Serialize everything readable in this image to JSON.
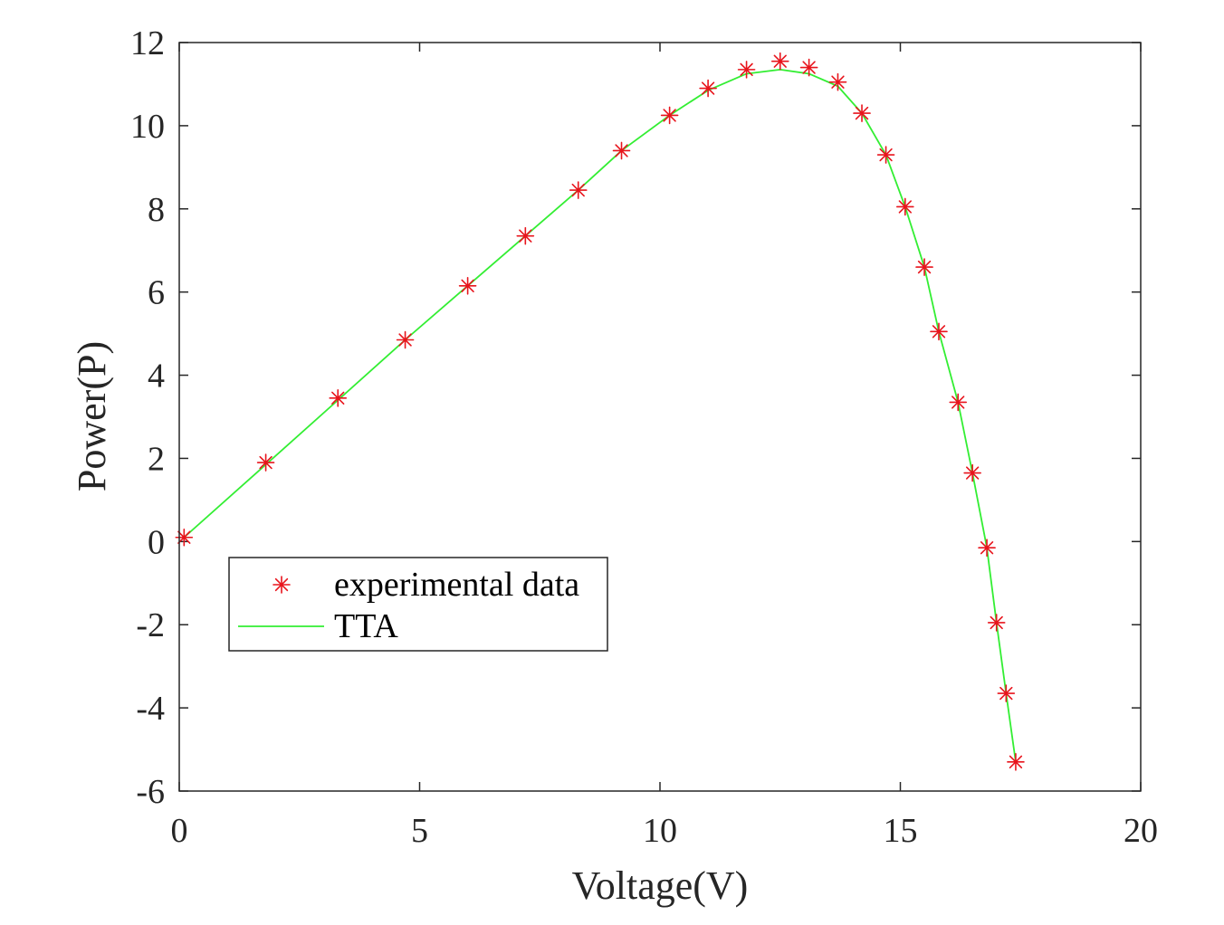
{
  "chart_data": {
    "type": "line",
    "title": "",
    "xlabel": "Voltage(V)",
    "ylabel": "Power(P)",
    "xlim": [
      0,
      20
    ],
    "ylim": [
      -6,
      12
    ],
    "xticks": [
      0,
      5,
      10,
      15,
      20
    ],
    "xtick_labels": [
      "0",
      "5",
      "10",
      "15",
      "20"
    ],
    "yticks": [
      -6,
      -4,
      -2,
      0,
      2,
      4,
      6,
      8,
      10,
      12
    ],
    "ytick_labels": [
      "-6",
      "-4",
      "-2",
      "0",
      "2",
      "4",
      "6",
      "8",
      "10",
      "12"
    ],
    "grid": false,
    "legend_position": "lower-left",
    "series": [
      {
        "name": "experimental data",
        "style": "markers",
        "marker": "asterisk",
        "color": "#e8141c",
        "x": [
          0.1,
          1.8,
          3.3,
          4.7,
          6.0,
          7.2,
          8.3,
          9.2,
          10.2,
          11.0,
          11.8,
          12.5,
          13.1,
          13.7,
          14.2,
          14.7,
          15.1,
          15.5,
          15.8,
          16.2,
          16.5,
          16.8,
          17.0,
          17.2,
          17.4
        ],
        "y": [
          0.1,
          1.9,
          3.45,
          4.85,
          6.15,
          7.35,
          8.45,
          9.4,
          10.25,
          10.9,
          11.35,
          11.55,
          11.4,
          11.05,
          10.3,
          9.3,
          8.05,
          6.6,
          5.05,
          3.35,
          1.65,
          -0.15,
          -1.95,
          -3.65,
          -5.3
        ]
      },
      {
        "name": "TTA",
        "style": "line",
        "color": "#33ee33",
        "x": [
          0.1,
          1.8,
          3.3,
          4.7,
          6.0,
          7.2,
          8.3,
          9.2,
          10.2,
          11.0,
          11.8,
          12.5,
          13.1,
          13.7,
          14.2,
          14.7,
          15.1,
          15.5,
          15.8,
          16.2,
          16.5,
          16.8,
          17.0,
          17.2,
          17.4
        ],
        "y": [
          0.1,
          1.85,
          3.4,
          4.85,
          6.15,
          7.35,
          8.45,
          9.4,
          10.25,
          10.85,
          11.25,
          11.35,
          11.25,
          10.95,
          10.3,
          9.3,
          8.05,
          6.6,
          5.05,
          3.35,
          1.65,
          -0.15,
          -1.95,
          -3.65,
          -5.3
        ]
      }
    ]
  }
}
